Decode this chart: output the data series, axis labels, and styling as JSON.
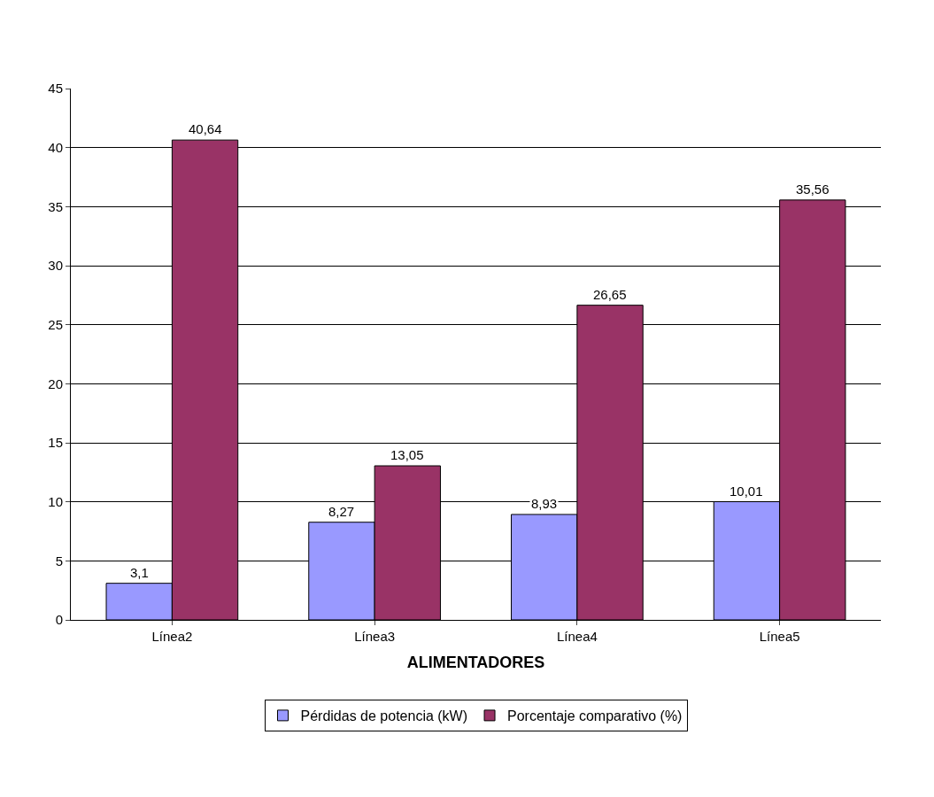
{
  "chart_data": {
    "type": "bar",
    "xlabel": "ALIMENTADORES",
    "categories": [
      "Línea2",
      "Línea3",
      "Línea4",
      "Línea5"
    ],
    "series": [
      {
        "name": "Pérdidas de potencia (kW)",
        "color": "#9999ff",
        "values": [
          3.1,
          8.27,
          8.93,
          10.01
        ],
        "value_labels": [
          "3,1",
          "8,27",
          "8,93",
          "10,01"
        ]
      },
      {
        "name": "Porcentaje comparativo (%)",
        "color": "#993366",
        "values": [
          40.64,
          13.05,
          26.65,
          35.56
        ],
        "value_labels": [
          "40,64",
          "13,05",
          "26,65",
          "35,56"
        ]
      }
    ],
    "ylim": [
      0,
      45
    ],
    "yticks": [
      0,
      5,
      10,
      15,
      20,
      25,
      30,
      35,
      40,
      45
    ],
    "grid": "y",
    "legend": "bottom"
  }
}
